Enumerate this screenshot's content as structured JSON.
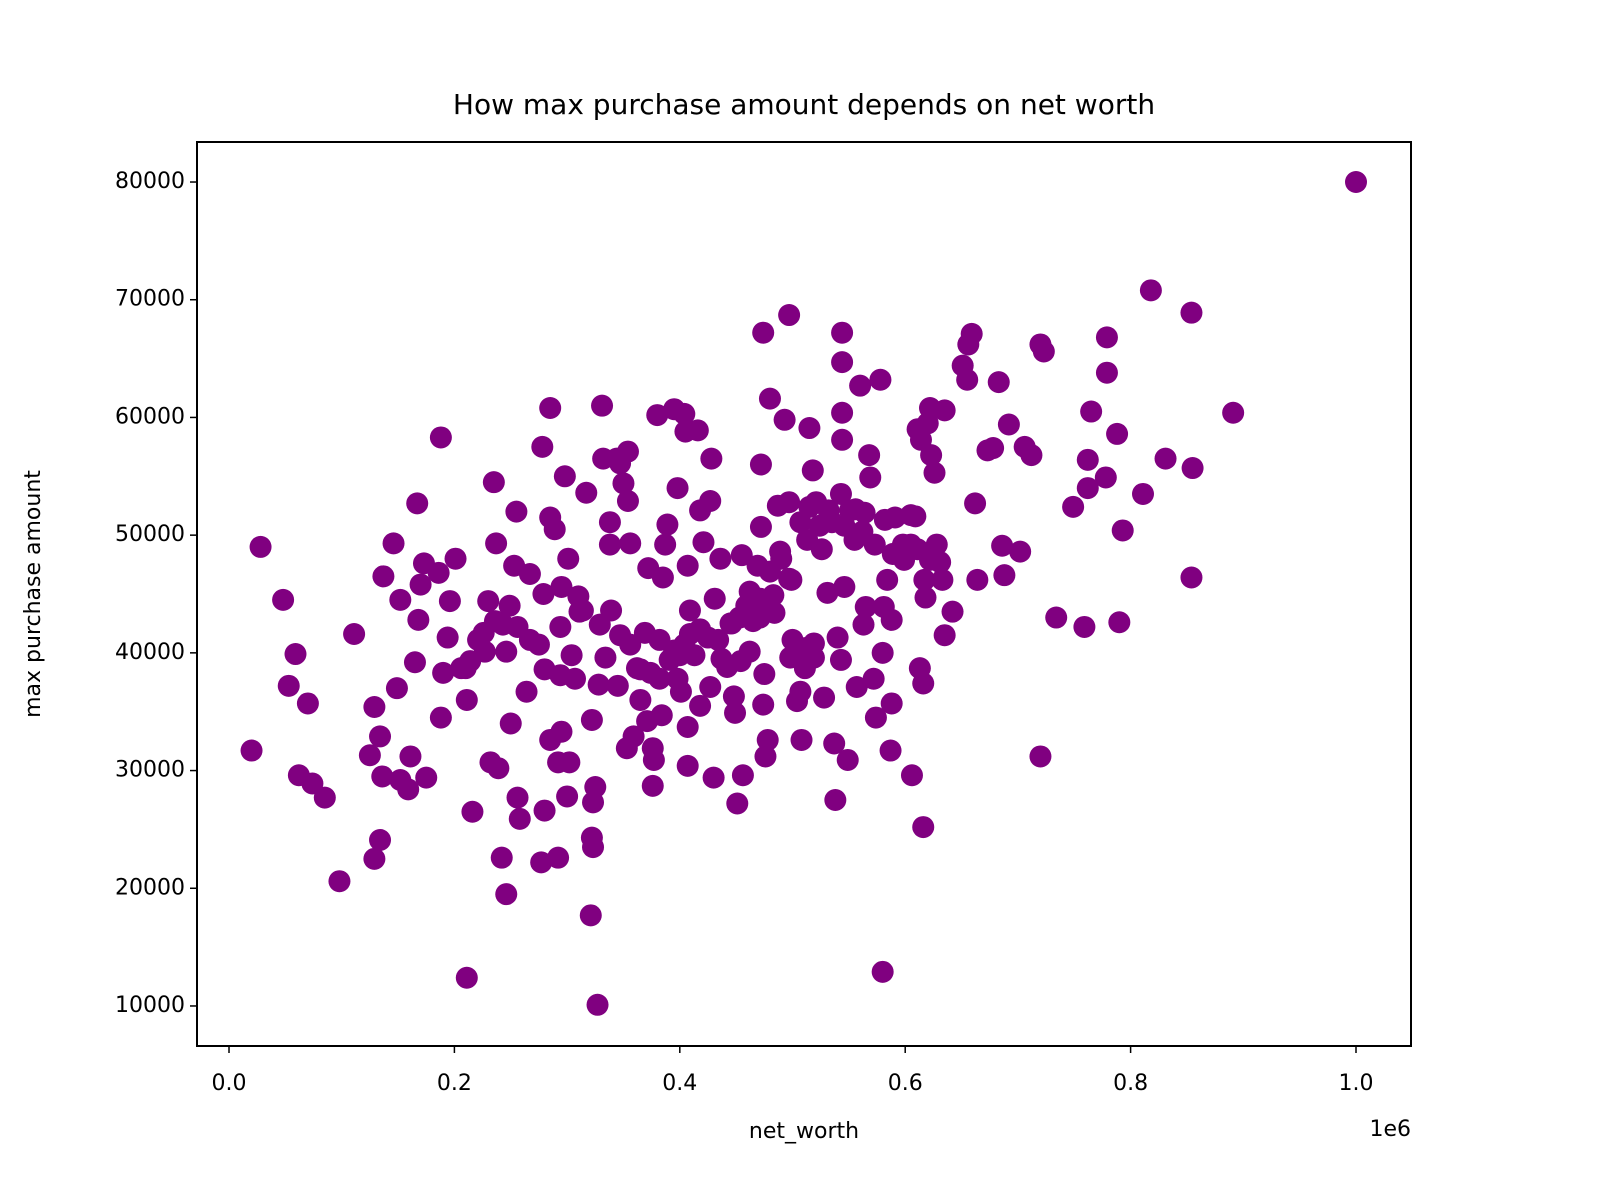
{
  "chart_data": {
    "type": "scatter",
    "title": "How max purchase amount depends on net worth",
    "x_label": "net_worth",
    "y_label": "max purchase amount",
    "x_offset_label": "1e6",
    "color": "#800080",
    "xlim": [
      -28400,
      1048800
    ],
    "ylim": [
      6600,
      83400
    ],
    "xticks": [
      {
        "value": 0,
        "label": "0.0"
      },
      {
        "value": 200000,
        "label": "0.2"
      },
      {
        "value": 400000,
        "label": "0.4"
      },
      {
        "value": 600000,
        "label": "0.6"
      },
      {
        "value": 800000,
        "label": "0.8"
      },
      {
        "value": 1000000,
        "label": "1.0"
      }
    ],
    "yticks": [
      10000,
      20000,
      30000,
      40000,
      50000,
      60000,
      70000,
      80000
    ],
    "grid": false,
    "x": [
      1000000,
      818000,
      854000,
      891000,
      855000,
      854000,
      831000,
      811000,
      793000,
      790000,
      788000,
      779000,
      779000,
      778000,
      765000,
      762000,
      762000,
      759000,
      749000,
      734000,
      720000,
      723000,
      720000,
      712000,
      706000,
      702000,
      688000,
      686000,
      692000,
      683000,
      678000,
      673000,
      664000,
      662000,
      659000,
      656000,
      655000,
      651000,
      642000,
      635000,
      635000,
      633000,
      631000,
      628000,
      626000,
      623000,
      622000,
      620000,
      618000,
      614000,
      611000,
      617000,
      611000,
      609000,
      605000,
      613000,
      616000,
      616000,
      606000,
      598000,
      589000,
      588000,
      588000,
      587000,
      584000,
      581000,
      580000,
      580000,
      578000,
      574000,
      572000,
      569000,
      568000,
      565000,
      563000,
      562000,
      560000,
      557000,
      556000,
      549000,
      546000,
      544000,
      544000,
      544000,
      544000,
      543000,
      543000,
      540000,
      538000,
      537000,
      535000,
      531000,
      528000,
      526000,
      521000,
      519000,
      518000,
      515000,
      513000,
      511000,
      508000,
      504000,
      500000,
      499000,
      497000,
      493000,
      490000,
      487000,
      483000,
      480000,
      478000,
      476000,
      475000,
      474000,
      472000,
      472000,
      474000,
      469000,
      465000,
      459000,
      455000,
      456000,
      451000,
      449000,
      448000,
      454000,
      446000,
      436000,
      437000,
      431000,
      430000,
      428000,
      427000,
      425000,
      421000,
      416000,
      418000,
      409000,
      407000,
      407000,
      407000,
      405000,
      404000,
      398000,
      395000,
      389000,
      387000,
      385000,
      384000,
      380000,
      377000,
      376000,
      376000,
      372000,
      369000,
      365000,
      362000,
      359000,
      353000,
      356000,
      354000,
      354000,
      350000,
      347000,
      344000,
      339000,
      338000,
      338000,
      332000,
      331000,
      328000,
      327000,
      325000,
      323000,
      322000,
      321000,
      323000,
      322000,
      317000,
      314000,
      310000,
      304000,
      302000,
      300000,
      301000,
      298000,
      295000,
      292000,
      292000,
      295000,
      294000,
      289000,
      285000,
      285000,
      285000,
      280000,
      278000,
      277000,
      275000,
      279000,
      267000,
      264000,
      258000,
      256000,
      255000,
      253000,
      250000,
      246000,
      242000,
      246000,
      243000,
      239000,
      237000,
      235000,
      232000,
      230000,
      226000,
      221000,
      216000,
      211000,
      211000,
      210000,
      201000,
      196000,
      194000,
      190000,
      188000,
      188000,
      186000,
      175000,
      173000,
      170000,
      168000,
      167000,
      165000,
      161000,
      159000,
      152000,
      152000,
      149000,
      146000,
      137000,
      136000,
      134000,
      134000,
      129000,
      129000,
      125000,
      111000,
      98000,
      85000,
      74000,
      70000,
      62000,
      59000,
      53000,
      48000,
      28000,
      20000,
      382000,
      391000,
      395000,
      400000,
      404000,
      409000,
      398000,
      413000,
      374000,
      365000,
      356000,
      347000,
      329000,
      311000,
      307000,
      294000,
      280000,
      267000,
      256000,
      249000,
      236000,
      227000,
      214000,
      206000,
      418000,
      427000,
      442000,
      462000,
      471000,
      484000,
      498000,
      507000,
      511000,
      519000,
      524000,
      532000,
      546000,
      551000,
      555000,
      564000,
      573000,
      582000,
      591000,
      599000,
      605000,
      622000,
      497000,
      489000,
      497000,
      507000,
      515000,
      471000,
      480000,
      462000,
      453000,
      445000,
      418000,
      434000,
      334000,
      345000,
      371000,
      401000,
      382000
    ],
    "values": [
      80000,
      70800,
      68900,
      60400,
      55700,
      46400,
      56500,
      53500,
      50400,
      42600,
      58600,
      66800,
      63800,
      54900,
      60500,
      56400,
      54000,
      42200,
      52400,
      43000,
      31200,
      65600,
      66200,
      56800,
      57500,
      48600,
      46600,
      49100,
      59400,
      63000,
      57400,
      57200,
      46200,
      52700,
      67100,
      66200,
      63200,
      64400,
      43500,
      60600,
      41500,
      46200,
      47700,
      49200,
      55300,
      56800,
      60800,
      59500,
      44700,
      58100,
      59000,
      46200,
      48800,
      51600,
      51700,
      38700,
      37400,
      25200,
      29600,
      49200,
      48400,
      42800,
      35700,
      31700,
      46200,
      43900,
      40000,
      12900,
      63200,
      34500,
      37800,
      54900,
      56800,
      43900,
      42400,
      50300,
      62700,
      37100,
      52200,
      30900,
      45600,
      67200,
      60400,
      58100,
      64700,
      53500,
      39400,
      41300,
      27500,
      32300,
      51100,
      45100,
      36200,
      48800,
      52800,
      39600,
      55500,
      59100,
      49600,
      38700,
      32600,
      35900,
      41100,
      46200,
      68700,
      59800,
      48000,
      52500,
      44900,
      61600,
      32600,
      31200,
      38200,
      67200,
      56000,
      50700,
      35600,
      47400,
      42700,
      44000,
      48300,
      29600,
      27200,
      34900,
      36300,
      39300,
      42500,
      48000,
      39500,
      44600,
      29400,
      56500,
      52900,
      41300,
      49400,
      58900,
      52100,
      43600,
      47400,
      33700,
      30400,
      58800,
      60300,
      54000,
      60700,
      50900,
      49200,
      46400,
      34700,
      60200,
      30900,
      28700,
      31900,
      47200,
      41700,
      36000,
      38700,
      32900,
      31900,
      49300,
      57100,
      52900,
      54400,
      56100,
      56500,
      43600,
      51100,
      49200,
      56500,
      61000,
      37300,
      10100,
      28600,
      23500,
      24300,
      17700,
      27300,
      34300,
      53600,
      43600,
      44800,
      39800,
      30700,
      27800,
      48000,
      55000,
      45600,
      22600,
      30700,
      33300,
      42200,
      50500,
      60800,
      51500,
      32600,
      26600,
      57500,
      22200,
      40700,
      45000,
      46700,
      36700,
      25900,
      27700,
      52000,
      47400,
      34000,
      19500,
      22600,
      40100,
      42400,
      30200,
      49300,
      54500,
      30700,
      44400,
      41700,
      41100,
      26500,
      12400,
      36000,
      38700,
      48000,
      44400,
      41300,
      38300,
      58300,
      34500,
      46800,
      29400,
      47600,
      45800,
      42800,
      52700,
      39200,
      31200,
      28400,
      44500,
      29200,
      37000,
      49300,
      46500,
      29500,
      24100,
      32900,
      35400,
      22500,
      31300,
      41600,
      20600,
      27700,
      28900,
      35700,
      29600,
      39900,
      37200,
      44500,
      49000,
      31700,
      41100,
      39400,
      40200,
      39800,
      40700,
      41600,
      37800,
      39800,
      38300,
      38600,
      40700,
      41500,
      42400,
      43500,
      37800,
      38100,
      38600,
      41100,
      42200,
      44000,
      42700,
      40100,
      39300,
      38700,
      35500,
      37100,
      38800,
      40100,
      43000,
      43400,
      39600,
      36700,
      40400,
      40800,
      50800,
      52100,
      50800,
      52100,
      49600,
      51900,
      49200,
      51300,
      51500,
      47900,
      49200,
      47900,
      46300,
      48600,
      52800,
      51100,
      52400,
      44600,
      46900,
      45200,
      43000,
      42500,
      42000,
      41100,
      39600,
      37200,
      34200,
      36700,
      37800
    ]
  }
}
